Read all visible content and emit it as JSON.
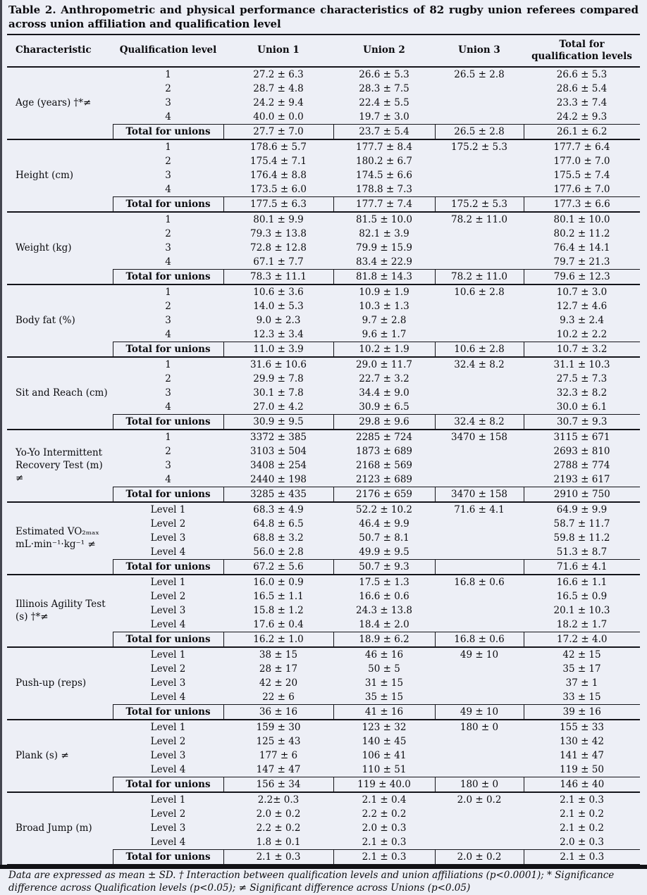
{
  "page": {
    "background": "#edeff6",
    "rule_color": "#14141a"
  },
  "title": "Table 2. Anthropometric and physical performance characteristics of 82 rugby union referees compared across union affiliation and qualification level",
  "table": {
    "columns": [
      "Characteristic",
      "Qualification level",
      "Union 1",
      "Union 2",
      "Union 3",
      "Total for qualification levels"
    ],
    "total_row_label": "Total for unions",
    "groups": [
      {
        "characteristic": "Age (years) †*≠",
        "rows": [
          {
            "level": "1",
            "union1": "27.2 ± 6.3",
            "union2": "26.6 ± 5.3",
            "union3": "26.5 ± 2.8",
            "total": "26.6 ± 5.3"
          },
          {
            "level": "2",
            "union1": "28.7 ± 4.8",
            "union2": "28.3 ± 7.5",
            "union3": "",
            "total": "28.6 ± 5.4"
          },
          {
            "level": "3",
            "union1": "24.2 ± 9.4",
            "union2": "22.4 ± 5.5",
            "union3": "",
            "total": "23.3 ± 7.4"
          },
          {
            "level": "4",
            "union1": "40.0 ± 0.0",
            "union2": "19.7 ± 3.0",
            "union3": "",
            "total": "24.2 ± 9.3"
          }
        ],
        "total": {
          "union1": "27.7 ± 7.0",
          "union2": "23.7 ± 5.4",
          "union3": "26.5 ± 2.8",
          "total": "26.1 ± 6.2"
        }
      },
      {
        "characteristic": "Height (cm)",
        "rows": [
          {
            "level": "1",
            "union1": "178.6 ± 5.7",
            "union2": "177.7 ± 8.4",
            "union3": "175.2 ± 5.3",
            "total": "177.7 ± 6.4"
          },
          {
            "level": "2",
            "union1": "175.4 ± 7.1",
            "union2": "180.2 ± 6.7",
            "union3": "",
            "total": "177.0 ± 7.0"
          },
          {
            "level": "3",
            "union1": "176.4 ± 8.8",
            "union2": "174.5 ± 6.6",
            "union3": "",
            "total": "175.5 ± 7.4"
          },
          {
            "level": "4",
            "union1": "173.5 ± 6.0",
            "union2": "178.8 ± 7.3",
            "union3": "",
            "total": "177.6 ± 7.0"
          }
        ],
        "total": {
          "union1": "177.5 ± 6.3",
          "union2": "177.7 ± 7.4",
          "union3": "175.2 ± 5.3",
          "total": "177.3 ± 6.6"
        }
      },
      {
        "characteristic": "Weight (kg)",
        "rows": [
          {
            "level": "1",
            "union1": "80.1 ± 9.9",
            "union2": "81.5 ± 10.0",
            "union3": "78.2 ± 11.0",
            "total": "80.1 ± 10.0"
          },
          {
            "level": "2",
            "union1": "79.3 ± 13.8",
            "union2": "82.1 ± 3.9",
            "union3": "",
            "total": "80.2 ± 11.2"
          },
          {
            "level": "3",
            "union1": "72.8 ± 12.8",
            "union2": "79.9 ± 15.9",
            "union3": "",
            "total": "76.4 ± 14.1"
          },
          {
            "level": "4",
            "union1": "67.1 ± 7.7",
            "union2": "83.4 ± 22.9",
            "union3": "",
            "total": "79.7 ± 21.3"
          }
        ],
        "total": {
          "union1": "78.3 ± 11.1",
          "union2": "81.8 ± 14.3",
          "union3": "78.2 ± 11.0",
          "total": "79.6 ± 12.3"
        }
      },
      {
        "characteristic": "Body fat (%)",
        "rows": [
          {
            "level": "1",
            "union1": "10.6 ± 3.6",
            "union2": "10.9 ± 1.9",
            "union3": "10.6 ± 2.8",
            "total": "10.7 ± 3.0"
          },
          {
            "level": "2",
            "union1": "14.0 ± 5.3",
            "union2": "10.3 ± 1.3",
            "union3": "",
            "total": "12.7 ± 4.6"
          },
          {
            "level": "3",
            "union1": "9.0 ± 2.3",
            "union2": "9.7 ± 2.8",
            "union3": "",
            "total": "9.3 ± 2.4"
          },
          {
            "level": "4",
            "union1": "12.3 ± 3.4",
            "union2": "9.6 ± 1.7",
            "union3": "",
            "total": "10.2 ± 2.2"
          }
        ],
        "total": {
          "union1": "11.0 ± 3.9",
          "union2": "10.2 ± 1.9",
          "union3": "10.6 ± 2.8",
          "total": "10.7 ± 3.2"
        }
      },
      {
        "characteristic": "Sit and Reach (cm)",
        "rows": [
          {
            "level": "1",
            "union1": "31.6 ± 10.6",
            "union2": "29.0 ± 11.7",
            "union3": "32.4 ± 8.2",
            "total": "31.1 ± 10.3"
          },
          {
            "level": "2",
            "union1": "29.9 ± 7.8",
            "union2": "22.7 ± 3.2",
            "union3": "",
            "total": "27.5 ± 7.3"
          },
          {
            "level": "3",
            "union1": "30.1 ± 7.8",
            "union2": "34.4 ± 9.0",
            "union3": "",
            "total": "32.3 ± 8.2"
          },
          {
            "level": "4",
            "union1": "27.0 ± 4.2",
            "union2": "30.9 ± 6.5",
            "union3": "",
            "total": "30.0 ± 6.1"
          }
        ],
        "total": {
          "union1": "30.9 ± 9.5",
          "union2": "29.8 ± 9.6",
          "union3": "32.4 ± 8.2",
          "total": "30.7 ± 9.3"
        }
      },
      {
        "characteristic": "Yo-Yo Intermittent Recovery Test (m) ≠",
        "rows": [
          {
            "level": "1",
            "union1": "3372 ± 385",
            "union2": "2285 ± 724",
            "union3": "3470 ± 158",
            "total": "3115 ± 671"
          },
          {
            "level": "2",
            "union1": "3103 ± 504",
            "union2": "1873 ± 689",
            "union3": "",
            "total": "2693 ± 810"
          },
          {
            "level": "3",
            "union1": "3408 ± 254",
            "union2": "2168 ± 569",
            "union3": "",
            "total": "2788 ± 774"
          },
          {
            "level": "4",
            "union1": "2440 ± 198",
            "union2": "2123 ± 689",
            "union3": "",
            "total": "2193 ± 617"
          }
        ],
        "total": {
          "union1": "3285 ± 435",
          "union2": "2176 ± 659",
          "union3": "3470 ± 158",
          "total": "2910 ± 750"
        }
      },
      {
        "characteristic": "Estimated VO₂ₘₐₓ mL·min⁻¹·kg⁻¹ ≠",
        "rows": [
          {
            "level": "Level 1",
            "union1": "68.3 ± 4.9",
            "union2": "52.2 ± 10.2",
            "union3": "71.6 ± 4.1",
            "total": "64.9 ± 9.9"
          },
          {
            "level": "Level 2",
            "union1": "64.8 ± 6.5",
            "union2": "46.4 ± 9.9",
            "union3": "",
            "total": "58.7 ± 11.7"
          },
          {
            "level": "Level 3",
            "union1": "68.8 ± 3.2",
            "union2": "50.7 ± 8.1",
            "union3": "",
            "total": "59.8 ± 11.2"
          },
          {
            "level": "Level 4",
            "union1": "56.0 ± 2.8",
            "union2": "49.9 ± 9.5",
            "union3": "",
            "total": "51.3 ± 8.7"
          }
        ],
        "total": {
          "union1": "67.2 ± 5.6",
          "union2": "50.7 ± 9.3",
          "union3": "",
          "total": "71.6 ± 4.1"
        }
      },
      {
        "characteristic": "Illinois Agility Test (s) †*≠",
        "rows": [
          {
            "level": "Level 1",
            "union1": "16.0 ± 0.9",
            "union2": "17.5 ± 1.3",
            "union3": "16.8 ± 0.6",
            "total": "16.6 ± 1.1"
          },
          {
            "level": "Level 2",
            "union1": "16.5 ± 1.1",
            "union2": "16.6 ± 0.6",
            "union3": "",
            "total": "16.5 ± 0.9"
          },
          {
            "level": "Level 3",
            "union1": "15.8 ± 1.2",
            "union2": "24.3 ± 13.8",
            "union3": "",
            "total": "20.1 ± 10.3"
          },
          {
            "level": "Level 4",
            "union1": "17.6 ± 0.4",
            "union2": "18.4 ± 2.0",
            "union3": "",
            "total": "18.2 ± 1.7"
          }
        ],
        "total": {
          "union1": "16.2 ± 1.0",
          "union2": "18.9 ± 6.2",
          "union3": "16.8 ± 0.6",
          "total": "17.2 ± 4.0"
        }
      },
      {
        "characteristic": "Push-up (reps)",
        "rows": [
          {
            "level": "Level 1",
            "union1": "38 ± 15",
            "union2": "46 ± 16",
            "union3": "49 ± 10",
            "total": "42 ± 15"
          },
          {
            "level": "Level 2",
            "union1": "28 ± 17",
            "union2": "50 ± 5",
            "union3": "",
            "total": "35 ± 17"
          },
          {
            "level": "Level 3",
            "union1": "42 ± 20",
            "union2": "31 ± 15",
            "union3": "",
            "total": "37 ± 1"
          },
          {
            "level": "Level 4",
            "union1": "22 ± 6",
            "union2": "35 ± 15",
            "union3": "",
            "total": "33 ± 15"
          }
        ],
        "total": {
          "union1": "36 ± 16",
          "union2": "41 ± 16",
          "union3": "49 ± 10",
          "total": "39 ± 16"
        }
      },
      {
        "characteristic": "Plank (s) ≠",
        "rows": [
          {
            "level": "Level 1",
            "union1": "159 ± 30",
            "union2": "123 ± 32",
            "union3": "180 ± 0",
            "total": "155 ± 33"
          },
          {
            "level": "Level 2",
            "union1": "125 ± 43",
            "union2": "140 ± 45",
            "union3": "",
            "total": "130 ± 42"
          },
          {
            "level": "Level 3",
            "union1": "177 ± 6",
            "union2": "106 ± 41",
            "union3": "",
            "total": "141 ± 47"
          },
          {
            "level": "Level 4",
            "union1": "147 ± 47",
            "union2": "110 ± 51",
            "union3": "",
            "total": "119 ± 50"
          }
        ],
        "total": {
          "union1": "156 ± 34",
          "union2": "119 ± 40.0",
          "union3": "180 ± 0",
          "total": "146 ± 40"
        }
      },
      {
        "characteristic": "Broad Jump (m)",
        "rows": [
          {
            "level": "Level 1",
            "union1": "2.2± 0.3",
            "union2": "2.1 ± 0.4",
            "union3": "2.0 ± 0.2",
            "total": "2.1 ± 0.3"
          },
          {
            "level": "Level 2",
            "union1": "2.0 ± 0.2",
            "union2": "2.2 ± 0.2",
            "union3": "",
            "total": "2.1 ± 0.2"
          },
          {
            "level": "Level 3",
            "union1": "2.2 ± 0.2",
            "union2": "2.0 ± 0.3",
            "union3": "",
            "total": "2.1 ± 0.2"
          },
          {
            "level": "Level 4",
            "union1": "1.8 ± 0.1",
            "union2": "2.1 ± 0.3",
            "union3": "",
            "total": "2.0 ± 0.3"
          }
        ],
        "total": {
          "union1": "2.1 ± 0.3",
          "union2": "2.1 ± 0.3",
          "union3": "2.0 ± 0.2",
          "total": "2.1 ± 0.3"
        }
      }
    ]
  },
  "footnote": "Data are expressed as mean ± SD. † Interaction between qualification levels and union affiliations (p<0.0001); * Significance difference across Qualification levels (p<0.05); ≠ Significant difference across Unions (p<0.05)"
}
